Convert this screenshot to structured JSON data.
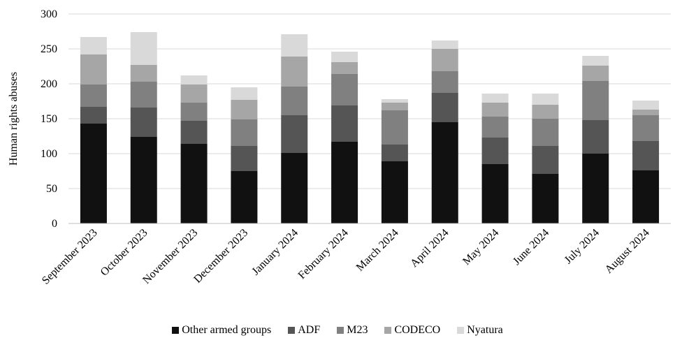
{
  "chart_data": {
    "type": "bar",
    "stacked": true,
    "title": "",
    "xlabel": "",
    "ylabel": "Human rights abuses",
    "ylim": [
      0,
      300
    ],
    "yticks": [
      0,
      50,
      100,
      150,
      200,
      250,
      300
    ],
    "grid": true,
    "legend_position": "bottom",
    "categories": [
      "September 2023",
      "October 2023",
      "November 2023",
      "December 2023",
      "January 2024",
      "February 2024",
      "March 2024",
      "April 2024",
      "May 2024",
      "June 2024",
      "July 2024",
      "August 2024"
    ],
    "series": [
      {
        "name": "Other armed groups",
        "color": "#111111",
        "values": [
          143,
          124,
          114,
          75,
          101,
          117,
          89,
          145,
          85,
          71,
          100,
          76
        ]
      },
      {
        "name": "ADF",
        "color": "#555555",
        "values": [
          24,
          42,
          33,
          36,
          54,
          52,
          24,
          42,
          38,
          40,
          48,
          42
        ]
      },
      {
        "name": "M23",
        "color": "#808080",
        "values": [
          32,
          37,
          26,
          38,
          41,
          45,
          49,
          31,
          30,
          39,
          56,
          37
        ]
      },
      {
        "name": "CODECO",
        "color": "#a6a6a6",
        "values": [
          43,
          24,
          26,
          28,
          43,
          17,
          11,
          32,
          20,
          20,
          22,
          8
        ]
      },
      {
        "name": "Nyatura",
        "color": "#d9d9d9",
        "values": [
          25,
          47,
          13,
          18,
          32,
          15,
          5,
          12,
          13,
          16,
          14,
          13
        ]
      }
    ]
  }
}
